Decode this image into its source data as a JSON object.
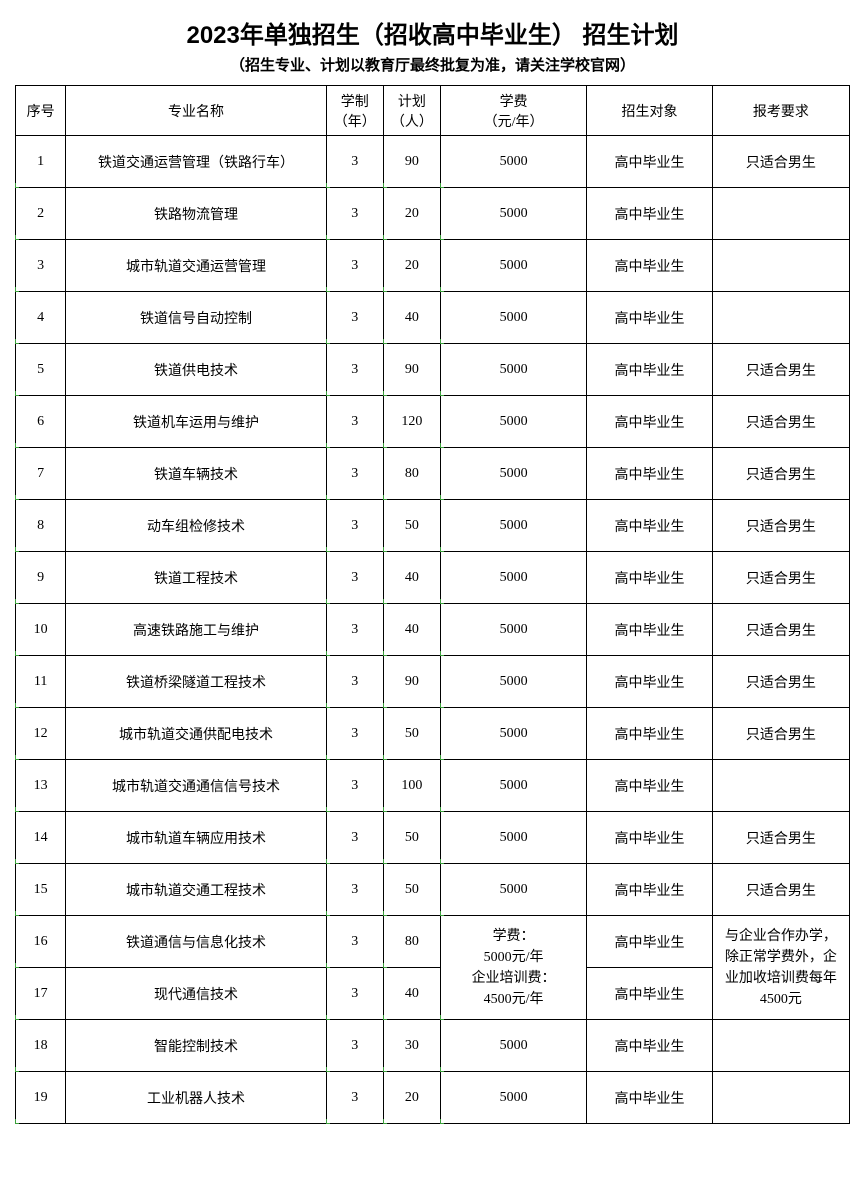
{
  "title": "2023年单独招生（招收高中毕业生） 招生计划",
  "subtitle": "（招生专业、计划以教育厅最终批复为准，请关注学校官网）",
  "headers": {
    "index": "序号",
    "major": "专业名称",
    "duration": "学制\n（年）",
    "plan": "计划\n（人）",
    "tuition": "学费\n（元/年）",
    "target": "招生对象",
    "requirement": "报考要求"
  },
  "merged_tuition": "学费：\n5000元/年\n企业培训费：\n4500元/年",
  "merged_requirement": "与企业合作办学，除正常学费外，企业加收培训费每年4500元",
  "rows": [
    {
      "index": "1",
      "major": "铁道交通运营管理（铁路行车）",
      "duration": "3",
      "plan": "90",
      "tuition": "5000",
      "target": "高中毕业生",
      "requirement": "只适合男生"
    },
    {
      "index": "2",
      "major": "铁路物流管理",
      "duration": "3",
      "plan": "20",
      "tuition": "5000",
      "target": "高中毕业生",
      "requirement": ""
    },
    {
      "index": "3",
      "major": "城市轨道交通运营管理",
      "duration": "3",
      "plan": "20",
      "tuition": "5000",
      "target": "高中毕业生",
      "requirement": ""
    },
    {
      "index": "4",
      "major": "铁道信号自动控制",
      "duration": "3",
      "plan": "40",
      "tuition": "5000",
      "target": "高中毕业生",
      "requirement": ""
    },
    {
      "index": "5",
      "major": "铁道供电技术",
      "duration": "3",
      "plan": "90",
      "tuition": "5000",
      "target": "高中毕业生",
      "requirement": "只适合男生"
    },
    {
      "index": "6",
      "major": "铁道机车运用与维护",
      "duration": "3",
      "plan": "120",
      "tuition": "5000",
      "target": "高中毕业生",
      "requirement": "只适合男生"
    },
    {
      "index": "7",
      "major": "铁道车辆技术",
      "duration": "3",
      "plan": "80",
      "tuition": "5000",
      "target": "高中毕业生",
      "requirement": "只适合男生"
    },
    {
      "index": "8",
      "major": "动车组检修技术",
      "duration": "3",
      "plan": "50",
      "tuition": "5000",
      "target": "高中毕业生",
      "requirement": "只适合男生"
    },
    {
      "index": "9",
      "major": "铁道工程技术",
      "duration": "3",
      "plan": "40",
      "tuition": "5000",
      "target": "高中毕业生",
      "requirement": "只适合男生"
    },
    {
      "index": "10",
      "major": "高速铁路施工与维护",
      "duration": "3",
      "plan": "40",
      "tuition": "5000",
      "target": "高中毕业生",
      "requirement": "只适合男生"
    },
    {
      "index": "11",
      "major": "铁道桥梁隧道工程技术",
      "duration": "3",
      "plan": "90",
      "tuition": "5000",
      "target": "高中毕业生",
      "requirement": "只适合男生"
    },
    {
      "index": "12",
      "major": "城市轨道交通供配电技术",
      "duration": "3",
      "plan": "50",
      "tuition": "5000",
      "target": "高中毕业生",
      "requirement": "只适合男生"
    },
    {
      "index": "13",
      "major": "城市轨道交通通信信号技术",
      "duration": "3",
      "plan": "100",
      "tuition": "5000",
      "target": "高中毕业生",
      "requirement": ""
    },
    {
      "index": "14",
      "major": "城市轨道车辆应用技术",
      "duration": "3",
      "plan": "50",
      "tuition": "5000",
      "target": "高中毕业生",
      "requirement": "只适合男生"
    },
    {
      "index": "15",
      "major": "城市轨道交通工程技术",
      "duration": "3",
      "plan": "50",
      "tuition": "5000",
      "target": "高中毕业生",
      "requirement": "只适合男生"
    },
    {
      "index": "16",
      "major": "铁道通信与信息化技术",
      "duration": "3",
      "plan": "80",
      "tuition": "MERGED",
      "target": "高中毕业生",
      "requirement": "MERGED"
    },
    {
      "index": "17",
      "major": "现代通信技术",
      "duration": "3",
      "plan": "40",
      "tuition": "MERGED",
      "target": "高中毕业生",
      "requirement": "MERGED"
    },
    {
      "index": "18",
      "major": "智能控制技术",
      "duration": "3",
      "plan": "30",
      "tuition": "5000",
      "target": "高中毕业生",
      "requirement": ""
    },
    {
      "index": "19",
      "major": "工业机器人技术",
      "duration": "3",
      "plan": "20",
      "tuition": "5000",
      "target": "高中毕业生",
      "requirement": ""
    }
  ],
  "colors": {
    "border": "#000000",
    "background": "#ffffff",
    "tick": "#3ca03c"
  }
}
